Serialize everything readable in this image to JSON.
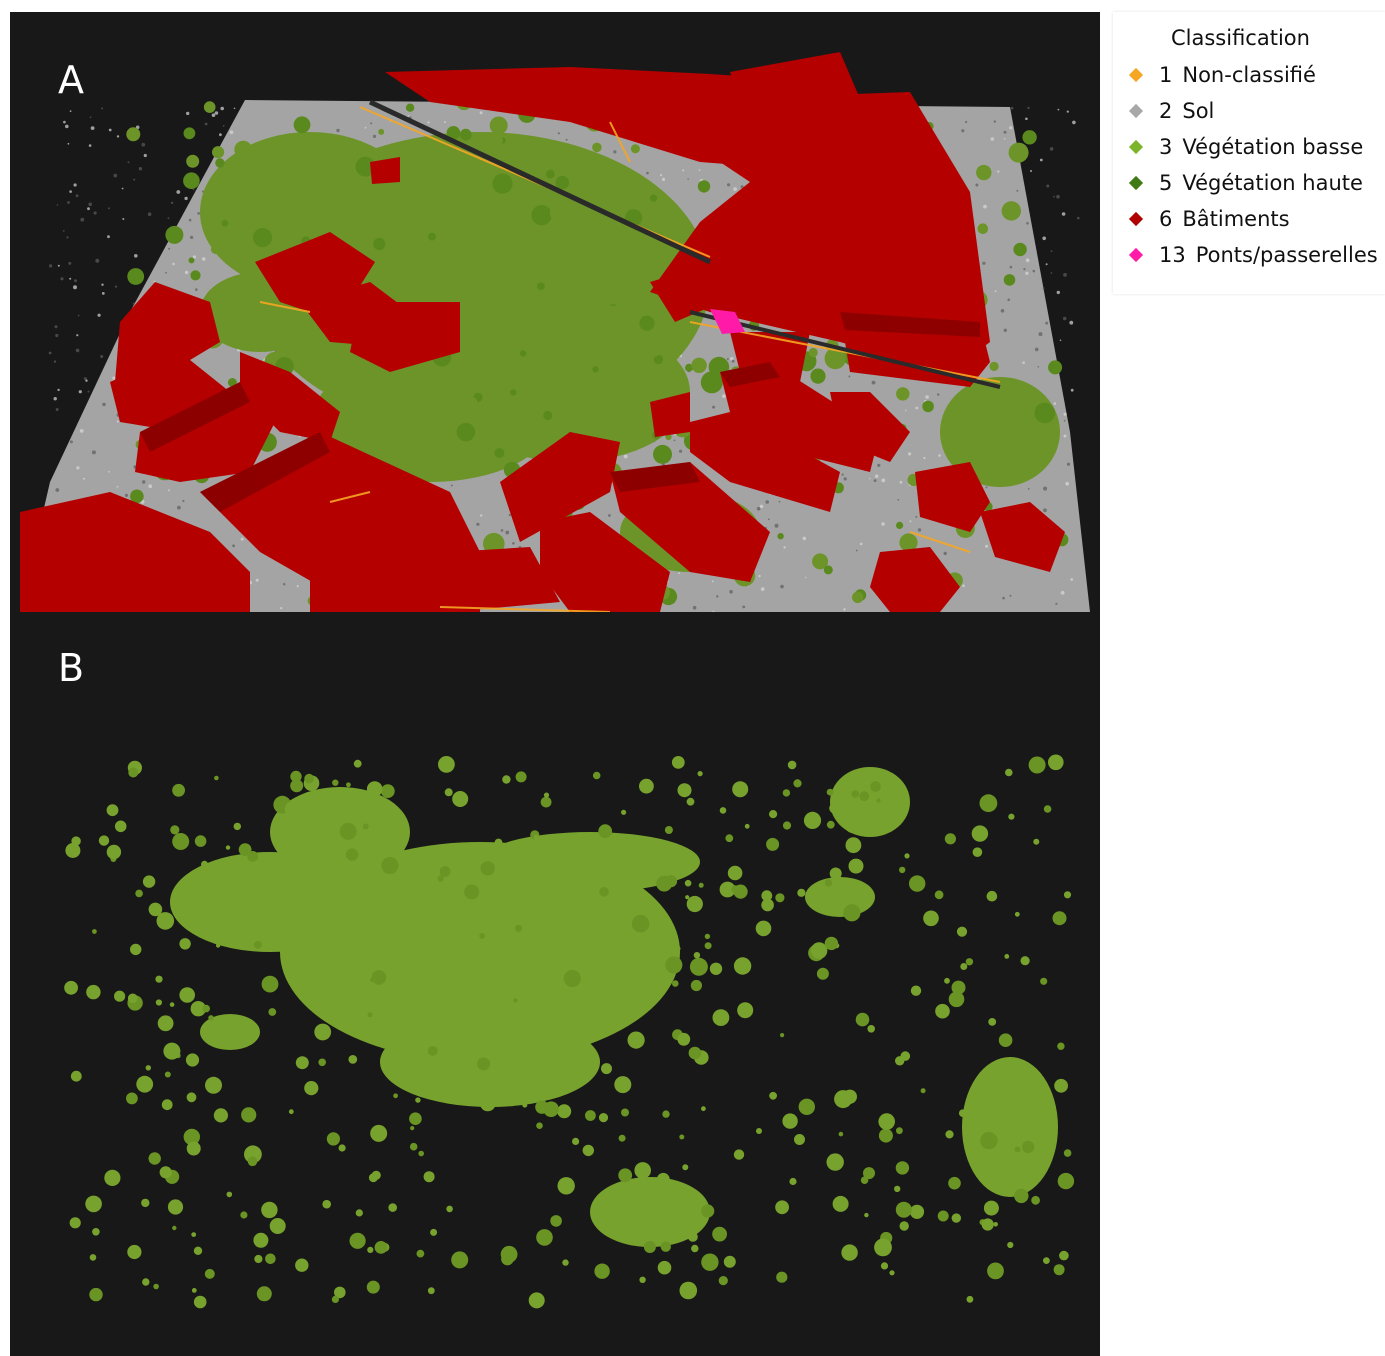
{
  "panels": {
    "a": {
      "label": "A"
    },
    "b": {
      "label": "B"
    }
  },
  "legend": {
    "title": "Classification",
    "items": [
      {
        "code": "1",
        "label": "Non-classifié",
        "color": "#f5a623"
      },
      {
        "code": "2",
        "label": "Sol",
        "color": "#a8a8a8"
      },
      {
        "code": "3",
        "label": "Végétation basse",
        "color": "#7cb52a"
      },
      {
        "code": "5",
        "label": "Végétation haute",
        "color": "#3f7a14"
      },
      {
        "code": "6",
        "label": "Bâtiments",
        "color": "#b00000"
      },
      {
        "code": "13",
        "label": "Ponts/passerelles",
        "color": "#ff1aa8"
      }
    ]
  },
  "colors": {
    "background": "#181818",
    "ground": "#a4a4a4",
    "vegetation": "#6d9428",
    "vegetation_b": "#78a22e",
    "building": "#b50000",
    "building_dark": "#6e0000",
    "unclassified": "#f5a623",
    "bridge": "#ff1aa8"
  }
}
